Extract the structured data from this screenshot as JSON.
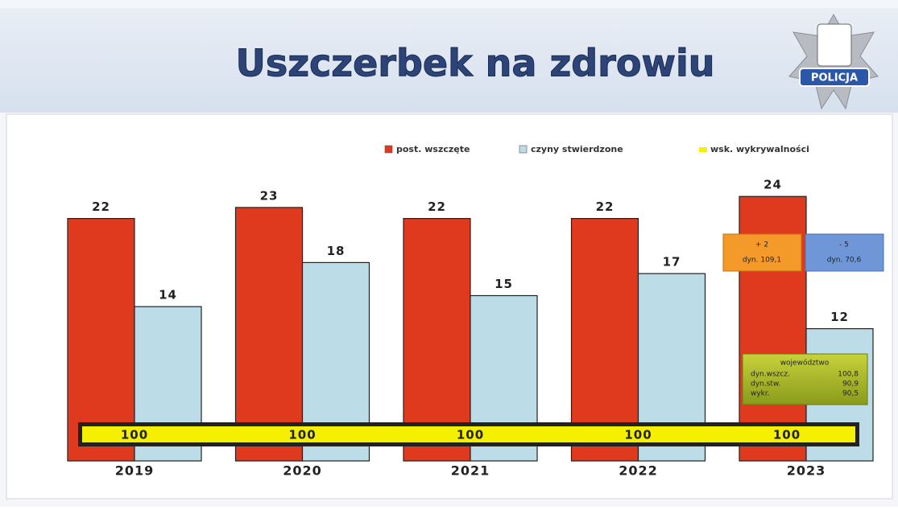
{
  "logo": "POLICJA",
  "chart_data": {
    "type": "bar",
    "title": "Uszczerbek na zdrowiu",
    "categories": [
      "2019",
      "2020",
      "2021",
      "2022",
      "2023"
    ],
    "series": [
      {
        "name": "post. wszczęte",
        "color": "#e03a1e",
        "values": [
          22,
          23,
          22,
          22,
          24
        ]
      },
      {
        "name": "czyny stwierdzone",
        "color": "#bcdce8",
        "values": [
          14,
          18,
          15,
          17,
          12
        ]
      },
      {
        "name": "wsk. wykrywalności",
        "color": "#f5f000",
        "values": [
          100,
          100,
          100,
          100,
          100
        ]
      }
    ],
    "annotations": {
      "change_first": [
        "+ 2",
        "dyn. 109,1"
      ],
      "change_second": [
        "- 5",
        "dyn. 70,6"
      ],
      "region": {
        "title": "województwo",
        "rows": [
          [
            "dyn.wszcz.",
            "100,8"
          ],
          [
            "dyn.stw.",
            "90,9"
          ],
          [
            "wykr.",
            "90,5"
          ]
        ]
      }
    }
  }
}
